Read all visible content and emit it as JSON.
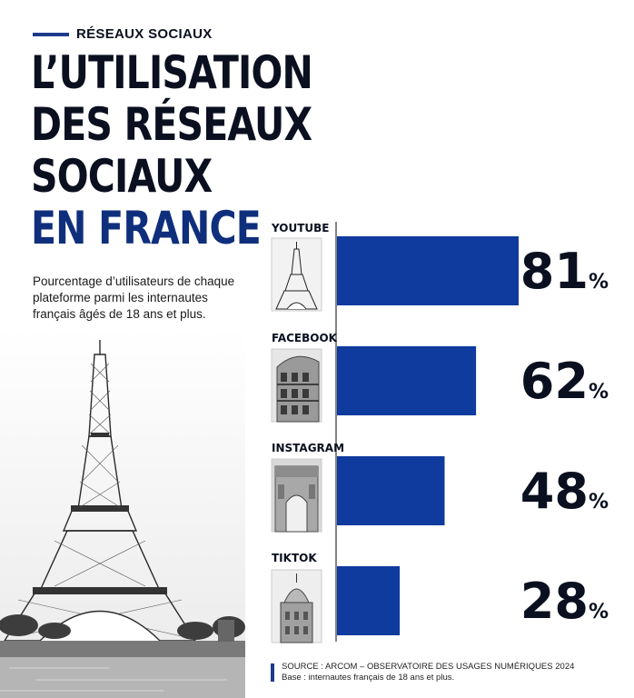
{
  "kicker": "RÉSEAUX SOCIAUX",
  "title": {
    "lines": [
      "L’UTILISATION",
      "DES RÉSEAUX",
      "SOCIAUX"
    ],
    "accent_line": "EN FRANCE"
  },
  "subtitle": "Pourcentage d’utilisateurs de chaque plateforme parmi les internautes français âgés de 18 ans et plus.",
  "source": {
    "line1": "SOURCE : ARCOM – OBSERVATOIRE DES USAGES NUMÉRIQUES 2024",
    "line2": "Base : internautes français de 18 ans et plus."
  },
  "colors": {
    "accent": "#1e3a8a",
    "bar": "#0f3a9e",
    "text": "#0b1020"
  },
  "chart_data": {
    "type": "bar",
    "orientation": "horizontal",
    "categories": [
      "YOUTUBE",
      "FACEBOOK",
      "INSTAGRAM",
      "TIKTOK"
    ],
    "values": [
      81,
      62,
      48,
      28
    ],
    "value_suffix": "%",
    "xlim": [
      0,
      100
    ],
    "grid": false,
    "legend": "none",
    "icons": [
      "eiffel-tower-icon",
      "haussmann-building-icon",
      "arc-de-triomphe-icon",
      "sacre-coeur-icon"
    ]
  }
}
